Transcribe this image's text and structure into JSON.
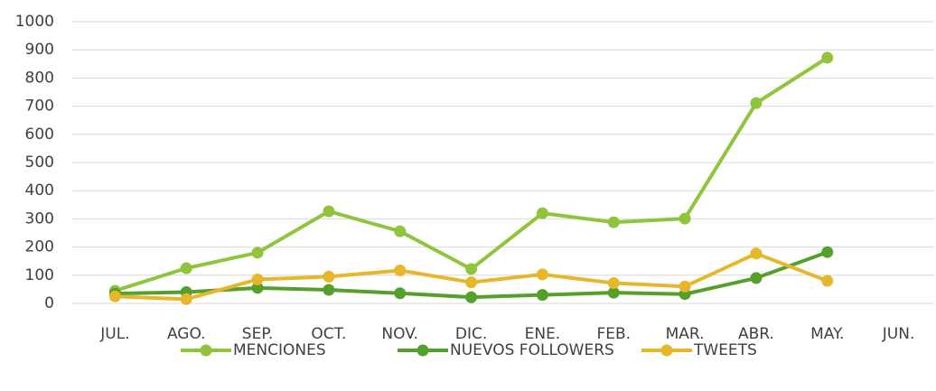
{
  "chart_data": {
    "type": "line",
    "categories": [
      "JUL.",
      "AGO.",
      "SEP.",
      "OCT.",
      "NOV.",
      "DIC.",
      "ENE.",
      "FEB.",
      "MAR.",
      "ABR.",
      "MAY.",
      "JUN."
    ],
    "series": [
      {
        "name": "MENCIONES",
        "color": "#8fc43c",
        "values": [
          45,
          125,
          180,
          327,
          256,
          122,
          320,
          288,
          301,
          711,
          872,
          null
        ]
      },
      {
        "name": "NUEVOS FOLLOWERS",
        "color": "#55a02c",
        "values": [
          35,
          40,
          55,
          48,
          36,
          22,
          30,
          38,
          33,
          90,
          182,
          null
        ]
      },
      {
        "name": "TWEETS",
        "color": "#e6b72a",
        "values": [
          25,
          15,
          85,
          95,
          117,
          75,
          103,
          72,
          60,
          177,
          80,
          null
        ]
      }
    ],
    "ylim": [
      0,
      1000
    ],
    "yticks": [
      0,
      100,
      200,
      300,
      400,
      500,
      600,
      700,
      800,
      900,
      1000
    ],
    "grid": true,
    "legend": "bottom"
  }
}
